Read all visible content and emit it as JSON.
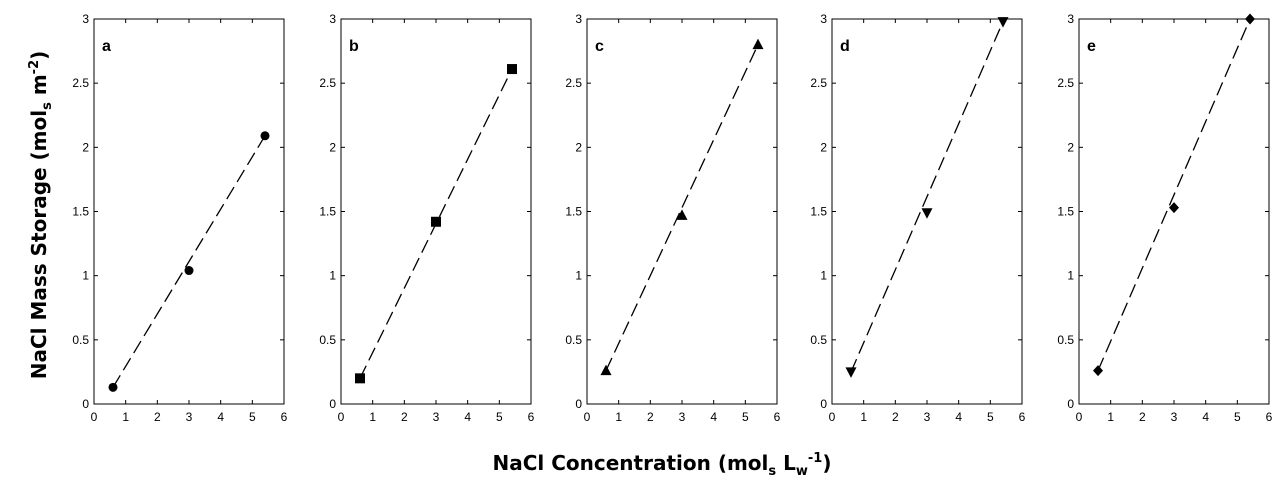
{
  "figure": {
    "ylabel": {
      "main": "NaCl Mass Storage (mol",
      "sub": "s",
      "mid": " m",
      "sup": "-2",
      "end": ")"
    },
    "xlabel": {
      "main": "NaCl Concentration (mol",
      "sub1": "s",
      "mid": " L",
      "sub2": "w",
      "sup": "-1",
      "end": ")"
    }
  },
  "chart_data": [
    {
      "type": "scatter",
      "panel_label": "a",
      "marker": "circle",
      "x": [
        0.6,
        3.0,
        5.4
      ],
      "y": [
        0.13,
        1.04,
        2.09
      ],
      "xlim": [
        0,
        6
      ],
      "ylim": [
        0,
        3
      ],
      "xticks": [
        0,
        1,
        2,
        3,
        4,
        5,
        6
      ],
      "yticks": [
        0,
        0.5,
        1,
        1.5,
        2,
        2.5,
        3
      ],
      "fit_line": "dashed",
      "grid": false
    },
    {
      "type": "scatter",
      "panel_label": "b",
      "marker": "square",
      "x": [
        0.6,
        3.0,
        5.4
      ],
      "y": [
        0.2,
        1.42,
        2.61
      ],
      "xlim": [
        0,
        6
      ],
      "ylim": [
        0,
        3
      ],
      "xticks": [
        0,
        1,
        2,
        3,
        4,
        5,
        6
      ],
      "yticks": [
        0,
        0.5,
        1,
        1.5,
        2,
        2.5,
        3
      ],
      "fit_line": "dashed",
      "grid": false
    },
    {
      "type": "scatter",
      "panel_label": "c",
      "marker": "triangle-up",
      "x": [
        0.6,
        3.0,
        5.4
      ],
      "y": [
        0.26,
        1.47,
        2.8
      ],
      "xlim": [
        0,
        6
      ],
      "ylim": [
        0,
        3
      ],
      "xticks": [
        0,
        1,
        2,
        3,
        4,
        5,
        6
      ],
      "yticks": [
        0,
        0.5,
        1,
        1.5,
        2,
        2.5,
        3
      ],
      "fit_line": "dashed",
      "grid": false
    },
    {
      "type": "scatter",
      "panel_label": "d",
      "marker": "triangle-down",
      "x": [
        0.6,
        3.0,
        5.4
      ],
      "y": [
        0.25,
        1.49,
        2.98
      ],
      "xlim": [
        0,
        6
      ],
      "ylim": [
        0,
        3
      ],
      "xticks": [
        0,
        1,
        2,
        3,
        4,
        5,
        6
      ],
      "yticks": [
        0,
        0.5,
        1,
        1.5,
        2,
        2.5,
        3
      ],
      "fit_line": "dashed",
      "grid": false
    },
    {
      "type": "scatter",
      "panel_label": "e",
      "marker": "diamond",
      "x": [
        0.6,
        3.0,
        5.4
      ],
      "y": [
        0.26,
        1.53,
        3.0
      ],
      "xlim": [
        0,
        6
      ],
      "ylim": [
        0,
        3
      ],
      "xticks": [
        0,
        1,
        2,
        3,
        4,
        5,
        6
      ],
      "yticks": [
        0,
        0.5,
        1,
        1.5,
        2,
        2.5,
        3
      ],
      "fit_line": "dashed",
      "grid": false
    }
  ]
}
